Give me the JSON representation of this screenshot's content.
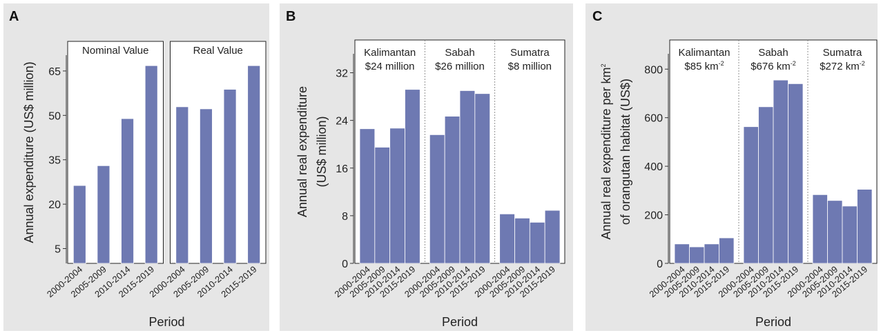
{
  "chart_data": [
    {
      "panel": "A",
      "type": "bar",
      "ylabel": "Annual expenditure (US$ million)",
      "xlabel": "Period",
      "yticks": [
        5,
        20,
        35,
        50,
        65
      ],
      "ylim": [
        0,
        75
      ],
      "categories": [
        "2000-2004",
        "2005-2009",
        "2010-2014",
        "2015-2019"
      ],
      "facets": [
        {
          "name": "Nominal Value",
          "values": [
            26.3,
            33,
            48.9,
            66.8
          ]
        },
        {
          "name": "Real Value",
          "values": [
            52.9,
            52.2,
            58.8,
            66.8
          ]
        }
      ]
    },
    {
      "panel": "B",
      "type": "bar",
      "ylabel": "Annual real expenditure",
      "ylabel2": "(US$ million)",
      "xlabel": "Period",
      "yticks": [
        0,
        8,
        16,
        24,
        32
      ],
      "ylim": [
        0,
        37.5
      ],
      "categories": [
        "2000-2004",
        "2005-2009",
        "2010-2014",
        "2015-2019"
      ],
      "facets": [
        {
          "name": "Kalimantan",
          "sub": "$24 million",
          "values": [
            22.6,
            19.5,
            22.7,
            29.2
          ]
        },
        {
          "name": "Sabah",
          "sub": "$26 million",
          "values": [
            21.6,
            24.7,
            29.0,
            28.5
          ]
        },
        {
          "name": "Sumatra",
          "sub": "$8 million",
          "values": [
            8.3,
            7.6,
            6.9,
            8.9
          ]
        }
      ]
    },
    {
      "panel": "C",
      "type": "bar",
      "ylabel": "Annual real expenditure per km",
      "ylabel_sup": "2",
      "ylabel2": "of orangutan habitat (US$)",
      "xlabel": "Period",
      "yticks": [
        0,
        200,
        400,
        600,
        800
      ],
      "ylim": [
        0,
        920
      ],
      "categories": [
        "2000-2004",
        "2005-2009",
        "2010-2014",
        "2015-2019"
      ],
      "facets": [
        {
          "name": "Kalimantan",
          "sub": "$85 km",
          "sub_sup": "-2",
          "values": [
            80,
            68,
            80,
            105
          ]
        },
        {
          "name": "Sabah",
          "sub": "$676 km",
          "sub_sup": "-2",
          "values": [
            563,
            645,
            755,
            740
          ]
        },
        {
          "name": "Sumatra",
          "sub": "$272 km",
          "sub_sup": "-2",
          "values": [
            283,
            259,
            236,
            305
          ]
        }
      ]
    }
  ]
}
